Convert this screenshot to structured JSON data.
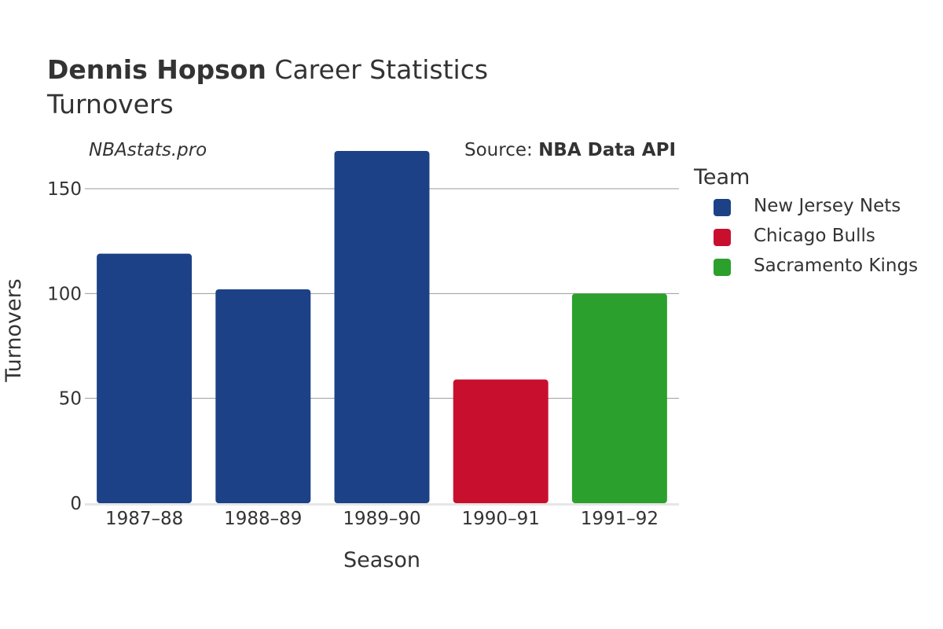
{
  "header": {
    "title_bold": "Dennis Hopson",
    "title_rest": " Career Statistics",
    "subtitle": "Turnovers",
    "watermark": "NBAstats.pro",
    "source_prefix": "Source: ",
    "source_bold": "NBA Data API"
  },
  "legend": {
    "title": "Team",
    "items": [
      {
        "label": "New Jersey Nets",
        "color": "#1c4187"
      },
      {
        "label": "Chicago Bulls",
        "color": "#c8102e"
      },
      {
        "label": "Sacramento Kings",
        "color": "#2ca02c"
      }
    ]
  },
  "chart_data": {
    "type": "bar",
    "xlabel": "Season",
    "ylabel": "Turnovers",
    "categories": [
      "1987–88",
      "1988–89",
      "1989–90",
      "1990–91",
      "1991–92"
    ],
    "values": [
      119,
      102,
      168,
      59,
      100
    ],
    "teams": [
      "New Jersey Nets",
      "New Jersey Nets",
      "New Jersey Nets",
      "Chicago Bulls",
      "Sacramento Kings"
    ],
    "ylim": [
      0,
      180
    ],
    "yticks": [
      0,
      50,
      100,
      150
    ],
    "grid": true,
    "legend_position": "right"
  }
}
